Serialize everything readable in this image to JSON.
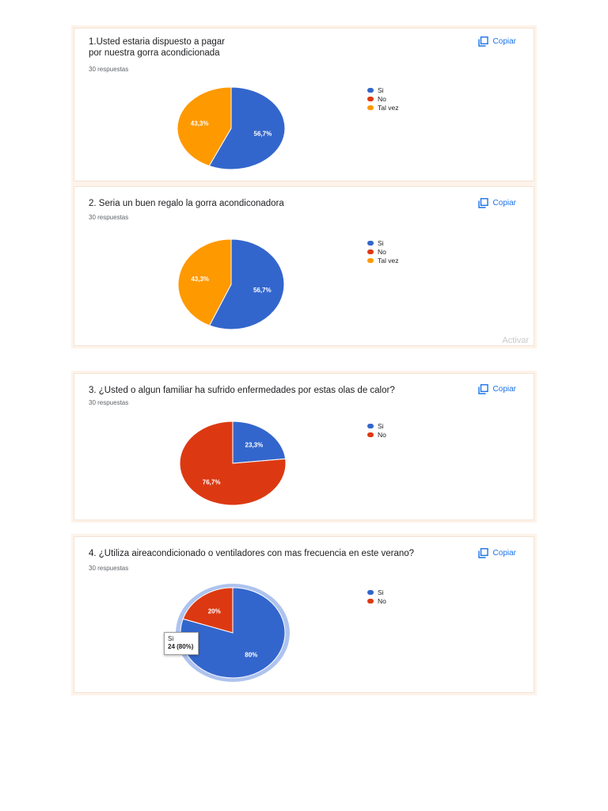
{
  "copy_label": "Copiar",
  "watermark": "Activar",
  "colors": {
    "Si": "#3366cc",
    "No": "#dc3912",
    "Tal vez": "#ff9900"
  },
  "tooltip": {
    "label": "Si",
    "value": "24 (80%)"
  },
  "chart_data": [
    {
      "type": "pie",
      "title": "1.Usted estaria dispuesto a pagar\npor nuestra gorra acondicionada",
      "subtitle": "30 respuestas",
      "legend": [
        "Si",
        "No",
        "Tal vez"
      ],
      "slices": [
        {
          "label": "Si",
          "value": 56.7,
          "text": "56,7%"
        },
        {
          "label": "No",
          "value": 0,
          "text": ""
        },
        {
          "label": "Tal vez",
          "value": 43.3,
          "text": "43,3%"
        }
      ]
    },
    {
      "type": "pie",
      "title": "2. Seria un buen regalo la gorra acondiconadora",
      "subtitle": "30 respuestas",
      "legend": [
        "Si",
        "No",
        "Tal vez"
      ],
      "slices": [
        {
          "label": "Si",
          "value": 56.7,
          "text": "56,7%"
        },
        {
          "label": "No",
          "value": 0,
          "text": ""
        },
        {
          "label": "Tal vez",
          "value": 43.3,
          "text": "43,3%"
        }
      ]
    },
    {
      "type": "pie",
      "title": "3. ¿Usted o algun familiar ha sufrido  enfermedades por estas olas de calor?",
      "subtitle": "30 respuestas",
      "legend": [
        "Si",
        "No"
      ],
      "slices": [
        {
          "label": "Si",
          "value": 23.3,
          "text": "23,3%"
        },
        {
          "label": "No",
          "value": 76.7,
          "text": "76,7%"
        }
      ]
    },
    {
      "type": "pie",
      "title": "4. ¿Utiliza aireacondicionado o ventiladores con mas frecuencia en este verano?",
      "subtitle": "30 respuestas",
      "legend": [
        "Si",
        "No"
      ],
      "highlighted": "Si",
      "slices": [
        {
          "label": "Si",
          "value": 80,
          "text": "80%"
        },
        {
          "label": "No",
          "value": 20,
          "text": "20%"
        }
      ]
    }
  ]
}
